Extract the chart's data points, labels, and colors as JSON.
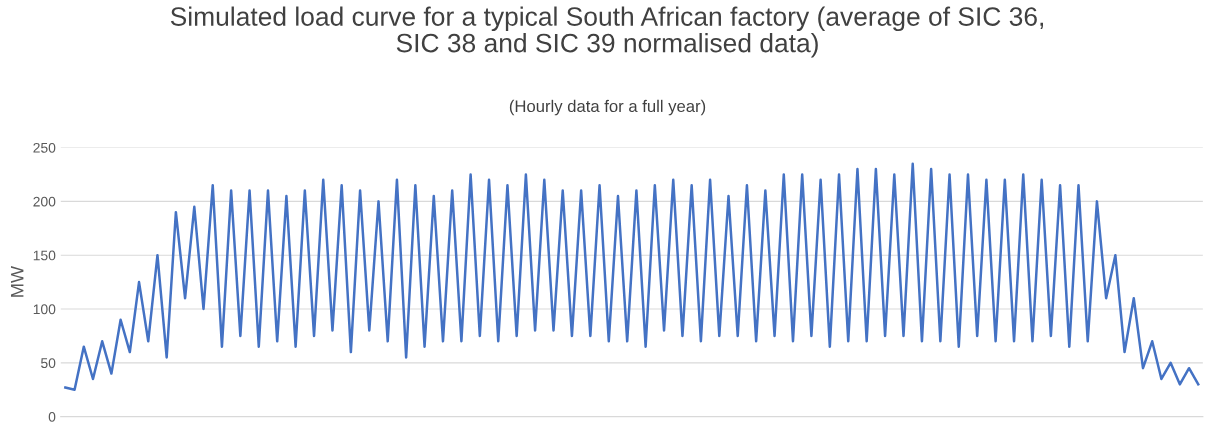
{
  "chart_data": {
    "type": "line",
    "title": "Simulated load curve for a typical South African factory (average of SIC 36,\nSIC 38 and SIC 39 normalised data)",
    "subtitle": "(Hourly data for a full year)",
    "ylabel": "MW",
    "categories": [
      null,
      null,
      null,
      null,
      null,
      null,
      null,
      null,
      null,
      null,
      null,
      null,
      null,
      null,
      null,
      null,
      null,
      null,
      null,
      null,
      null,
      null,
      null,
      null,
      null,
      null,
      null,
      null,
      null,
      null,
      null,
      null,
      null,
      null,
      null,
      null,
      null,
      null,
      null,
      null,
      null,
      null,
      null,
      null,
      null,
      null,
      null,
      null,
      null,
      null,
      null,
      null,
      null,
      null,
      null,
      null,
      null,
      null,
      null,
      null,
      null,
      null,
      null,
      null,
      null,
      null,
      null,
      null,
      null,
      null,
      null,
      null,
      null,
      null,
      null,
      null,
      null,
      null,
      null,
      null,
      null,
      null,
      null,
      null,
      null,
      null,
      null,
      null,
      null,
      null,
      null,
      null,
      null,
      null,
      null,
      null,
      null,
      null,
      null,
      null,
      null,
      null,
      null,
      null,
      null,
      null,
      null,
      null,
      null,
      null,
      null,
      null,
      null,
      null,
      null,
      null,
      null,
      null,
      null,
      null,
      null,
      null,
      null,
      null
    ],
    "series": [
      {
        "color": "#4472c4",
        "values": [
          27,
          25,
          65,
          35,
          70,
          40,
          90,
          60,
          125,
          70,
          150,
          55,
          190,
          110,
          195,
          100,
          215,
          65,
          210,
          75,
          210,
          65,
          210,
          70,
          205,
          65,
          210,
          75,
          220,
          80,
          215,
          60,
          210,
          80,
          200,
          70,
          220,
          55,
          215,
          65,
          205,
          70,
          210,
          70,
          225,
          75,
          220,
          70,
          215,
          75,
          225,
          80,
          220,
          80,
          210,
          75,
          210,
          75,
          215,
          70,
          205,
          70,
          210,
          65,
          215,
          80,
          220,
          75,
          215,
          70,
          220,
          75,
          205,
          75,
          215,
          70,
          210,
          75,
          225,
          70,
          225,
          75,
          220,
          65,
          225,
          70,
          230,
          70,
          230,
          75,
          225,
          75,
          235,
          70,
          230,
          70,
          225,
          65,
          225,
          75,
          220,
          70,
          220,
          70,
          225,
          70,
          220,
          75,
          215,
          65,
          215,
          70,
          200,
          110,
          150,
          60,
          110,
          45,
          70,
          35,
          50,
          30,
          45,
          30
        ]
      }
    ],
    "ylim": [
      0,
      250
    ],
    "yticks": [
      0,
      50,
      100,
      150,
      200,
      250
    ],
    "grid": "y",
    "tick_labels": "y"
  }
}
